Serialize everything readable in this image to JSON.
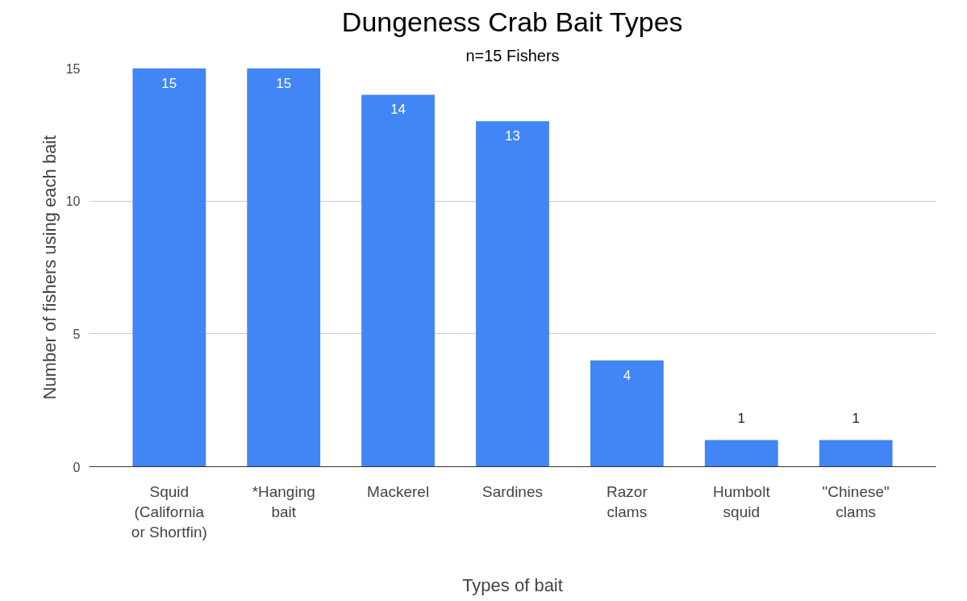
{
  "chart_data": {
    "type": "bar",
    "title": "Dungeness Crab Bait Types",
    "subtitle": "n=15 Fishers",
    "xlabel": "Types of bait",
    "ylabel": "Number of fishers using each bait",
    "categories": [
      "Squid\n(California\nor Shortfin)",
      "*Hanging\nbait",
      "Mackerel",
      "Sardines",
      "Razor\nclams",
      "Humbolt\nsquid",
      "\"Chinese\"\nclams"
    ],
    "values": [
      15,
      15,
      14,
      13,
      4,
      1,
      1
    ],
    "color": "#4285f4",
    "ylim": [
      0,
      15
    ],
    "yticks": [
      0,
      5,
      10,
      15
    ],
    "grid": "y",
    "data_labels": true
  }
}
